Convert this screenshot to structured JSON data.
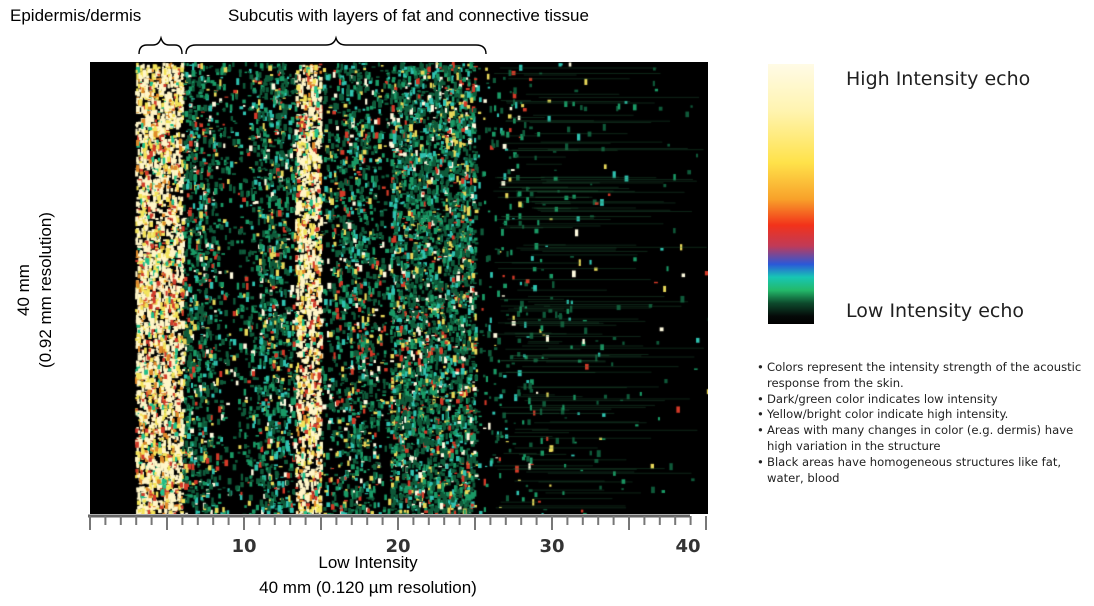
{
  "annotations": {
    "epidermis_label": "Epidermis/dermis",
    "subcutis_label": "Subcutis with layers of fat and connective tissue"
  },
  "y_axis": {
    "line1": "40 mm",
    "line2": "(0.92 mm resolution)"
  },
  "x_axis": {
    "tick_labels": [
      "10",
      "20",
      "30",
      "40"
    ],
    "label": "Low Intensity",
    "sublabel": "40 mm (0.120 µm resolution)"
  },
  "legend": {
    "high_label": "High Intensity echo",
    "low_label": "Low Intensity echo",
    "colors": [
      "#fffbe6",
      "#ffe24a",
      "#f8a12a",
      "#f2321a",
      "#2b58d8",
      "#17c6b4",
      "#23b96a",
      "#000000"
    ]
  },
  "notes": [
    "Colors represent the intensity strength of the acoustic response from the skin.",
    "Dark/green color indicates low intensity",
    "Yellow/bright color indicate high intensity.",
    "Areas with many changes in color  (e.g. dermis) have high variation in the structure",
    "Black areas have homogeneous structures like fat, water, blood"
  ]
}
